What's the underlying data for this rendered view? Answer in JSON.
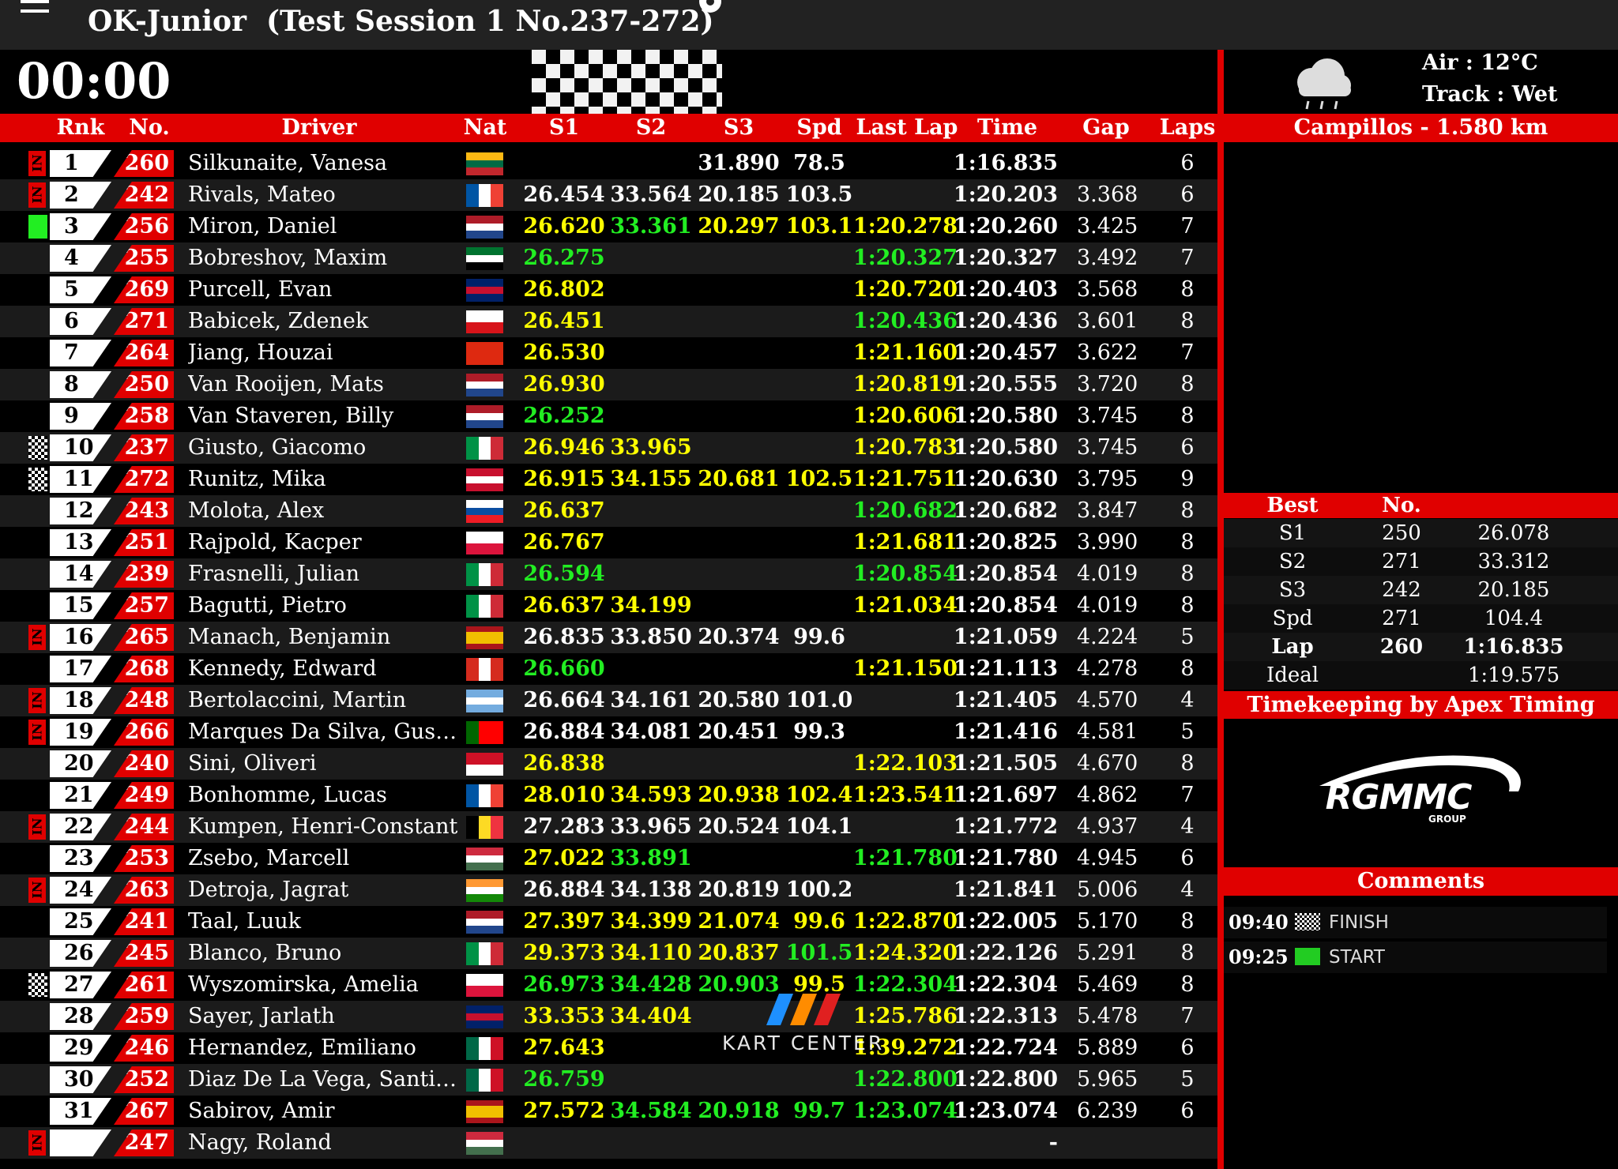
{
  "header": {
    "title": "OK-Junior",
    "session": "(Test Session 1 No.237-272)",
    "timer": "00:00"
  },
  "table": {
    "columns": [
      "Rnk",
      "No.",
      "Driver",
      "Nat",
      "S1",
      "S2",
      "S3",
      "Spd",
      "Last Lap",
      "Time",
      "Gap",
      "Laps"
    ],
    "palette": {
      "w": "#ffffff",
      "y": "#ffff00",
      "g": "#22ee22"
    },
    "rows": [
      {
        "rank": "1",
        "no": "260",
        "driver": "Silkunaite, Vanesa",
        "status": "IN",
        "flag": [
          "h",
          "#fdb913",
          "#006a44",
          "#c1272d"
        ],
        "s3": "31.890",
        "spd": "78.5",
        "time": "1:16.835",
        "laps": "6",
        "hl": "wwwww"
      },
      {
        "rank": "2",
        "no": "242",
        "driver": "Rivals, Mateo",
        "status": "IN",
        "flag": [
          "v",
          "#0055a4",
          "#ffffff",
          "#ef4135"
        ],
        "s1": "26.454",
        "s2": "33.564",
        "s3": "20.185",
        "spd": "103.5",
        "time": "1:20.203",
        "gap": "3.368",
        "laps": "6",
        "hl": "wwwww"
      },
      {
        "rank": "3",
        "no": "256",
        "driver": "Miron, Daniel",
        "marker": "green",
        "flag": [
          "h",
          "#ae1c28",
          "#ffffff",
          "#21468b"
        ],
        "s1": "26.620",
        "s2": "33.361",
        "s3": "20.297",
        "spd": "103.1",
        "last": "1:20.278",
        "time": "1:20.260",
        "gap": "3.425",
        "laps": "7",
        "hl": "ygyyy"
      },
      {
        "rank": "4",
        "no": "255",
        "driver": "Bobreshov, Maxim",
        "flag": [
          "h",
          "#00732f",
          "#ffffff",
          "#000000"
        ],
        "s1": "26.275",
        "last": "1:20.327",
        "time": "1:20.327",
        "gap": "3.492",
        "laps": "7",
        "hl": "gwwwg"
      },
      {
        "rank": "5",
        "no": "269",
        "driver": "Purcell, Evan",
        "flag": [
          "h",
          "#012169",
          "#c8102e",
          "#012169"
        ],
        "s1": "26.802",
        "last": "1:20.720",
        "time": "1:20.403",
        "gap": "3.568",
        "laps": "8",
        "hl": "ywwwy"
      },
      {
        "rank": "6",
        "no": "271",
        "driver": "Babicek, Zdenek",
        "flag": [
          "h",
          "#ffffff",
          "#d7141a"
        ],
        "s1": "26.451",
        "last": "1:20.436",
        "time": "1:20.436",
        "gap": "3.601",
        "laps": "8",
        "hl": "ywwwg"
      },
      {
        "rank": "7",
        "no": "264",
        "driver": "Jiang, Houzai",
        "flag": [
          "h",
          "#de2910"
        ],
        "s1": "26.530",
        "last": "1:21.160",
        "time": "1:20.457",
        "gap": "3.622",
        "laps": "7",
        "hl": "ywwwy"
      },
      {
        "rank": "8",
        "no": "250",
        "driver": "Van Rooijen, Mats",
        "flag": [
          "h",
          "#ae1c28",
          "#ffffff",
          "#21468b"
        ],
        "s1": "26.930",
        "last": "1:20.819",
        "time": "1:20.555",
        "gap": "3.720",
        "laps": "8",
        "hl": "ywwwy"
      },
      {
        "rank": "9",
        "no": "258",
        "driver": "Van Staveren, Billy",
        "flag": [
          "h",
          "#ae1c28",
          "#ffffff",
          "#21468b"
        ],
        "s1": "26.252",
        "last": "1:20.606",
        "time": "1:20.580",
        "gap": "3.745",
        "laps": "8",
        "hl": "gwwwy"
      },
      {
        "rank": "10",
        "no": "237",
        "driver": "Giusto, Giacomo",
        "marker": "checkered",
        "flag": [
          "v",
          "#009246",
          "#ffffff",
          "#ce2b37"
        ],
        "s1": "26.946",
        "s2": "33.965",
        "last": "1:20.783",
        "time": "1:20.580",
        "gap": "3.745",
        "laps": "6",
        "hl": "yywwy"
      },
      {
        "rank": "11",
        "no": "272",
        "driver": "Runitz, Mika",
        "marker": "checkered",
        "flag": [
          "h",
          "#c8102e",
          "#ffffff",
          "#c8102e"
        ],
        "s1": "26.915",
        "s2": "34.155",
        "s3": "20.681",
        "spd": "102.5",
        "last": "1:21.751",
        "time": "1:20.630",
        "gap": "3.795",
        "laps": "9",
        "hl": "yyyyy"
      },
      {
        "rank": "12",
        "no": "243",
        "driver": "Molota, Alex",
        "flag": [
          "h",
          "#ffffff",
          "#0b4ea2",
          "#ee1c25"
        ],
        "s1": "26.637",
        "last": "1:20.682",
        "time": "1:20.682",
        "gap": "3.847",
        "laps": "8",
        "hl": "ywwwg"
      },
      {
        "rank": "13",
        "no": "251",
        "driver": "Rajpold, Kacper",
        "flag": [
          "h",
          "#ffffff",
          "#dc143c"
        ],
        "s1": "26.767",
        "last": "1:21.681",
        "time": "1:20.825",
        "gap": "3.990",
        "laps": "8",
        "hl": "ywwwy"
      },
      {
        "rank": "14",
        "no": "239",
        "driver": "Frasnelli, Julian",
        "flag": [
          "v",
          "#009246",
          "#ffffff",
          "#ce2b37"
        ],
        "s1": "26.594",
        "last": "1:20.854",
        "time": "1:20.854",
        "gap": "4.019",
        "laps": "8",
        "hl": "gwwwg"
      },
      {
        "rank": "15",
        "no": "257",
        "driver": "Bagutti, Pietro",
        "flag": [
          "v",
          "#009246",
          "#ffffff",
          "#ce2b37"
        ],
        "s1": "26.637",
        "s2": "34.199",
        "last": "1:21.034",
        "time": "1:20.854",
        "gap": "4.019",
        "laps": "8",
        "hl": "yywwy"
      },
      {
        "rank": "16",
        "no": "265",
        "driver": "Manach, Benjamin",
        "status": "IN",
        "flag": [
          "h",
          "#aa151b",
          "#f1bf00",
          "#f1bf00",
          "#aa151b"
        ],
        "s1": "26.835",
        "s2": "33.850",
        "s3": "20.374",
        "spd": "99.6",
        "time": "1:21.059",
        "gap": "4.224",
        "laps": "5",
        "hl": "wwwww"
      },
      {
        "rank": "17",
        "no": "268",
        "driver": "Kennedy, Edward",
        "flag": [
          "v",
          "#d52b1e",
          "#ffffff",
          "#d52b1e"
        ],
        "s1": "26.660",
        "last": "1:21.150",
        "time": "1:21.113",
        "gap": "4.278",
        "laps": "8",
        "hl": "gwwwy"
      },
      {
        "rank": "18",
        "no": "248",
        "driver": "Bertolaccini, Martin",
        "status": "IN",
        "flag": [
          "h",
          "#74acdf",
          "#ffffff",
          "#74acdf"
        ],
        "s1": "26.664",
        "s2": "34.161",
        "s3": "20.580",
        "spd": "101.0",
        "time": "1:21.405",
        "gap": "4.570",
        "laps": "4",
        "hl": "wwwww"
      },
      {
        "rank": "19",
        "no": "266",
        "driver": "Marques Da Silva, Gus…",
        "status": "IN",
        "flag": [
          "v",
          "#006600",
          "#ff0000",
          "#ff0000"
        ],
        "s1": "26.884",
        "s2": "34.081",
        "s3": "20.451",
        "spd": "99.3",
        "time": "1:21.416",
        "gap": "4.581",
        "laps": "5",
        "hl": "wwwww"
      },
      {
        "rank": "20",
        "no": "240",
        "driver": "Sini, Oliveri",
        "flag": [
          "h",
          "#ce1126",
          "#ffffff"
        ],
        "s1": "26.838",
        "last": "1:22.103",
        "time": "1:21.505",
        "gap": "4.670",
        "laps": "8",
        "hl": "ywwwy"
      },
      {
        "rank": "21",
        "no": "249",
        "driver": "Bonhomme, Lucas",
        "flag": [
          "v",
          "#0055a4",
          "#ffffff",
          "#ef4135"
        ],
        "s1": "28.010",
        "s2": "34.593",
        "s3": "20.938",
        "spd": "102.4",
        "last": "1:23.541",
        "time": "1:21.697",
        "gap": "4.862",
        "laps": "7",
        "hl": "yyyyy"
      },
      {
        "rank": "22",
        "no": "244",
        "driver": "Kumpen, Henri-Constant",
        "status": "IN",
        "flag": [
          "v",
          "#000000",
          "#fdda24",
          "#ef3340"
        ],
        "s1": "27.283",
        "s2": "33.965",
        "s3": "20.524",
        "spd": "104.1",
        "time": "1:21.772",
        "gap": "4.937",
        "laps": "4",
        "hl": "wwwww"
      },
      {
        "rank": "23",
        "no": "253",
        "driver": "Zsebo, Marcell",
        "flag": [
          "h",
          "#cd2a3e",
          "#ffffff",
          "#436f4d"
        ],
        "s1": "27.022",
        "s2": "33.891",
        "last": "1:21.780",
        "time": "1:21.780",
        "gap": "4.945",
        "laps": "6",
        "hl": "ygwwg"
      },
      {
        "rank": "24",
        "no": "263",
        "driver": "Detroja, Jagrat",
        "status": "IN",
        "flag": [
          "h",
          "#ff9933",
          "#ffffff",
          "#138808"
        ],
        "s1": "26.884",
        "s2": "34.138",
        "s3": "20.819",
        "spd": "100.2",
        "time": "1:21.841",
        "gap": "5.006",
        "laps": "4",
        "hl": "wwwww"
      },
      {
        "rank": "25",
        "no": "241",
        "driver": "Taal, Luuk",
        "flag": [
          "h",
          "#ae1c28",
          "#ffffff",
          "#21468b"
        ],
        "s1": "27.397",
        "s2": "34.399",
        "s3": "21.074",
        "spd": "99.6",
        "last": "1:22.870",
        "time": "1:22.005",
        "gap": "5.170",
        "laps": "8",
        "hl": "yyyyy"
      },
      {
        "rank": "26",
        "no": "245",
        "driver": "Blanco, Bruno",
        "flag": [
          "v",
          "#009246",
          "#ffffff",
          "#ce2b37"
        ],
        "s1": "29.373",
        "s2": "34.110",
        "s3": "20.837",
        "spd": "101.5",
        "last": "1:24.320",
        "time": "1:22.126",
        "gap": "5.291",
        "laps": "8",
        "hl": "yyygy"
      },
      {
        "rank": "27",
        "no": "261",
        "driver": "Wyszomirska, Amelia",
        "marker": "checkered",
        "flag": [
          "h",
          "#ffffff",
          "#dc143c"
        ],
        "s1": "26.973",
        "s2": "34.428",
        "s3": "20.903",
        "spd": "99.5",
        "last": "1:22.304",
        "time": "1:22.304",
        "gap": "5.469",
        "laps": "8",
        "hl": "gggyg"
      },
      {
        "rank": "28",
        "no": "259",
        "driver": "Sayer, Jarlath",
        "flag": [
          "h",
          "#012169",
          "#c8102e",
          "#012169"
        ],
        "s1": "33.353",
        "s2": "34.404",
        "last": "1:25.786",
        "time": "1:22.313",
        "gap": "5.478",
        "laps": "7",
        "hl": "yywwy"
      },
      {
        "rank": "29",
        "no": "246",
        "driver": "Hernandez, Emiliano",
        "flag": [
          "v",
          "#006847",
          "#ffffff",
          "#ce1126"
        ],
        "s1": "27.643",
        "last": "1:39.272",
        "time": "1:22.724",
        "gap": "5.889",
        "laps": "6",
        "hl": "ywwwy"
      },
      {
        "rank": "30",
        "no": "252",
        "driver": "Diaz De La Vega, Santi…",
        "flag": [
          "v",
          "#006847",
          "#ffffff",
          "#ce1126"
        ],
        "s1": "26.759",
        "last": "1:22.800",
        "time": "1:22.800",
        "gap": "5.965",
        "laps": "5",
        "hl": "gwwwg"
      },
      {
        "rank": "31",
        "no": "267",
        "driver": "Sabirov, Amir",
        "flag": [
          "h",
          "#aa151b",
          "#f1bf00",
          "#f1bf00",
          "#aa151b"
        ],
        "s1": "27.572",
        "s2": "34.584",
        "s3": "20.918",
        "spd": "99.7",
        "last": "1:23.074",
        "time": "1:23.074",
        "gap": "6.239",
        "laps": "6",
        "hl": "ygggg"
      },
      {
        "no": "247",
        "driver": "Nagy, Roland",
        "status": "IN",
        "flag": [
          "h",
          "#cd2a3e",
          "#ffffff",
          "#436f4d"
        ],
        "time": "-",
        "hl": "wwwww"
      }
    ]
  },
  "weather": {
    "air": "Air : 12°C",
    "track": "Track : Wet"
  },
  "track": "Campillos - 1.580 km",
  "best": {
    "columns": [
      "Best",
      "No."
    ],
    "rows": [
      {
        "label": "S1",
        "no": "250",
        "value": "26.078"
      },
      {
        "label": "S2",
        "no": "271",
        "value": "33.312"
      },
      {
        "label": "S3",
        "no": "242",
        "value": "20.185"
      },
      {
        "label": "Spd",
        "no": "271",
        "value": "104.4"
      },
      {
        "label": "Lap",
        "no": "260",
        "value": "1:16.835",
        "bold": true
      },
      {
        "label": "Ideal",
        "value": "1:19.575"
      }
    ]
  },
  "timekeeping": "Timekeeping by Apex Timing",
  "logo": {
    "name": "RGMMC",
    "sub": "GROUP"
  },
  "comments": {
    "title": "Comments",
    "items": [
      {
        "time": "09:40",
        "text": "FINISH",
        "flag": "checkered"
      },
      {
        "time": "09:25",
        "text": "START",
        "flag": "green"
      }
    ]
  },
  "watermark": "KART CENTER"
}
